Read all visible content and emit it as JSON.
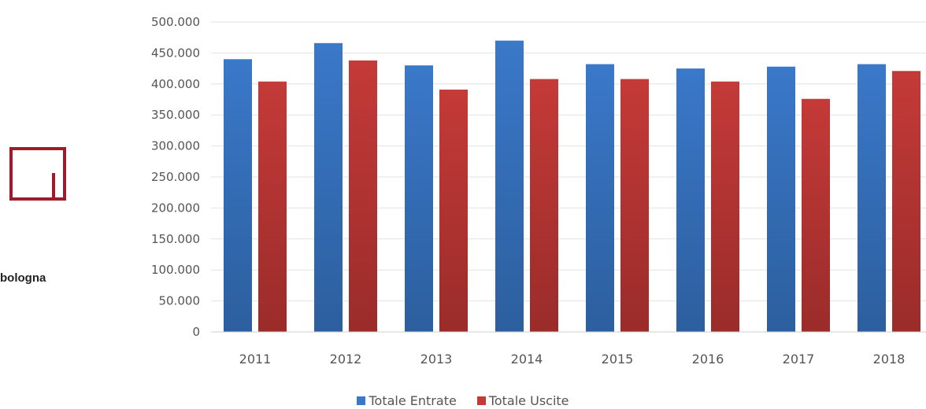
{
  "brand": {
    "text": "bologna"
  },
  "colors": {
    "entrate": "#3a78c9",
    "uscite": "#c43a38",
    "logo": "#9e1b2c"
  },
  "chart_data": {
    "type": "bar",
    "categories": [
      "2011",
      "2012",
      "2013",
      "2014",
      "2015",
      "2016",
      "2017",
      "2018"
    ],
    "series": [
      {
        "name": "Totale Entrate",
        "values": [
          440000,
          466000,
          430000,
          470000,
          432000,
          425000,
          428000,
          432000
        ]
      },
      {
        "name": "Totale Uscite",
        "values": [
          404000,
          438000,
          391000,
          408000,
          408000,
          404000,
          376000,
          421000
        ]
      }
    ],
    "yticks": [
      "0",
      "50.000",
      "100.000",
      "150.000",
      "200.000",
      "250.000",
      "300.000",
      "350.000",
      "400.000",
      "450.000",
      "500.000"
    ],
    "ylim": [
      0,
      500000
    ],
    "grid": true,
    "legend_position": "bottom"
  }
}
